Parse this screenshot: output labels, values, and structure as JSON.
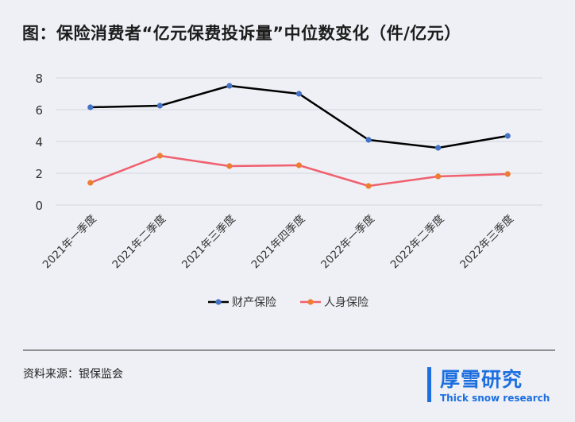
{
  "title": "图：保险消费者“亿元保费投诉量”中位数变化（件/亿元）",
  "source": "资料来源：银保监会",
  "logo": {
    "cn": "厚雪研究",
    "en": "Thick snow research"
  },
  "chart_data": {
    "type": "line",
    "title": "图：保险消费者“亿元保费投诉量”中位数变化（件/亿元）",
    "categories": [
      "2021年一季度",
      "2021年二季度",
      "2021年三季度",
      "2021年四季度",
      "2022年一季度",
      "2022年二季度",
      "2022年三季度"
    ],
    "series": [
      {
        "name": "财产保险",
        "color": "#000000",
        "marker": "#4472c4",
        "values": [
          6.15,
          6.25,
          7.5,
          7.0,
          4.1,
          3.6,
          4.35
        ]
      },
      {
        "name": "人身保险",
        "color": "#f0606e",
        "marker": "#ed7d31",
        "values": [
          1.4,
          3.1,
          2.45,
          2.5,
          1.2,
          1.8,
          1.95
        ]
      }
    ],
    "yticks": [
      0,
      2,
      4,
      6,
      8
    ],
    "ylim": [
      0,
      8
    ],
    "grid": true,
    "legend": "bottom"
  }
}
